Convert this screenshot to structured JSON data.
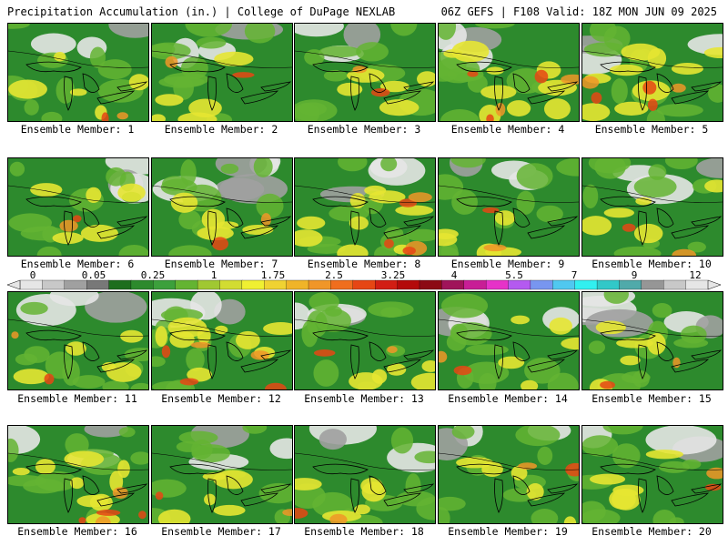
{
  "header": {
    "title": "Precipitation Accumulation (in.) | College of DuPage NEXLAB",
    "valid": "06Z GEFS | F108 Valid: 18Z MON JUN 09 2025"
  },
  "members": [
    {
      "label": "Ensemble Member: 1",
      "hue": "green"
    },
    {
      "label": "Ensemble Member: 2",
      "hue": "green"
    },
    {
      "label": "Ensemble Member: 3",
      "hue": "green"
    },
    {
      "label": "Ensemble Member: 4",
      "hue": "wet"
    },
    {
      "label": "Ensemble Member: 5",
      "hue": "wet"
    },
    {
      "label": "Ensemble Member: 6",
      "hue": "green"
    },
    {
      "label": "Ensemble Member: 7",
      "hue": "dry"
    },
    {
      "label": "Ensemble Member: 8",
      "hue": "wet"
    },
    {
      "label": "Ensemble Member: 9",
      "hue": "green"
    },
    {
      "label": "Ensemble Member: 10",
      "hue": "green"
    },
    {
      "label": "Ensemble Member: 11",
      "hue": "green"
    },
    {
      "label": "Ensemble Member: 12",
      "hue": "wet"
    },
    {
      "label": "Ensemble Member: 13",
      "hue": "green"
    },
    {
      "label": "Ensemble Member: 14",
      "hue": "green"
    },
    {
      "label": "Ensemble Member: 15",
      "hue": "dry"
    },
    {
      "label": "Ensemble Member: 16",
      "hue": "wet"
    },
    {
      "label": "Ensemble Member: 17",
      "hue": "green"
    },
    {
      "label": "Ensemble Member: 18",
      "hue": "green"
    },
    {
      "label": "Ensemble Member: 19",
      "hue": "green"
    },
    {
      "label": "Ensemble Member: 20",
      "hue": "green"
    }
  ],
  "legend": {
    "labels": [
      "0",
      "0.05",
      "0.25",
      "1",
      "1.75",
      "2.5",
      "3.25",
      "4",
      "5.5",
      "7",
      "9",
      "12"
    ],
    "colors": [
      "#e6e6e6",
      "#c8c8c8",
      "#a0a0a0",
      "#787878",
      "#1e6e1e",
      "#2d8a2d",
      "#3ca03c",
      "#64b432",
      "#a0c832",
      "#d2dc32",
      "#f0f032",
      "#f0d232",
      "#f0b428",
      "#f09628",
      "#f06e1e",
      "#e64614",
      "#d21e14",
      "#b40a0a",
      "#8c0a14",
      "#a0145a",
      "#c81e96",
      "#e632c8",
      "#b45af0",
      "#7896f0",
      "#50c8f0",
      "#32f0f0",
      "#32c8c8",
      "#50aaaa",
      "#969696",
      "#c8c8c8",
      "#e6e6e6"
    ]
  }
}
